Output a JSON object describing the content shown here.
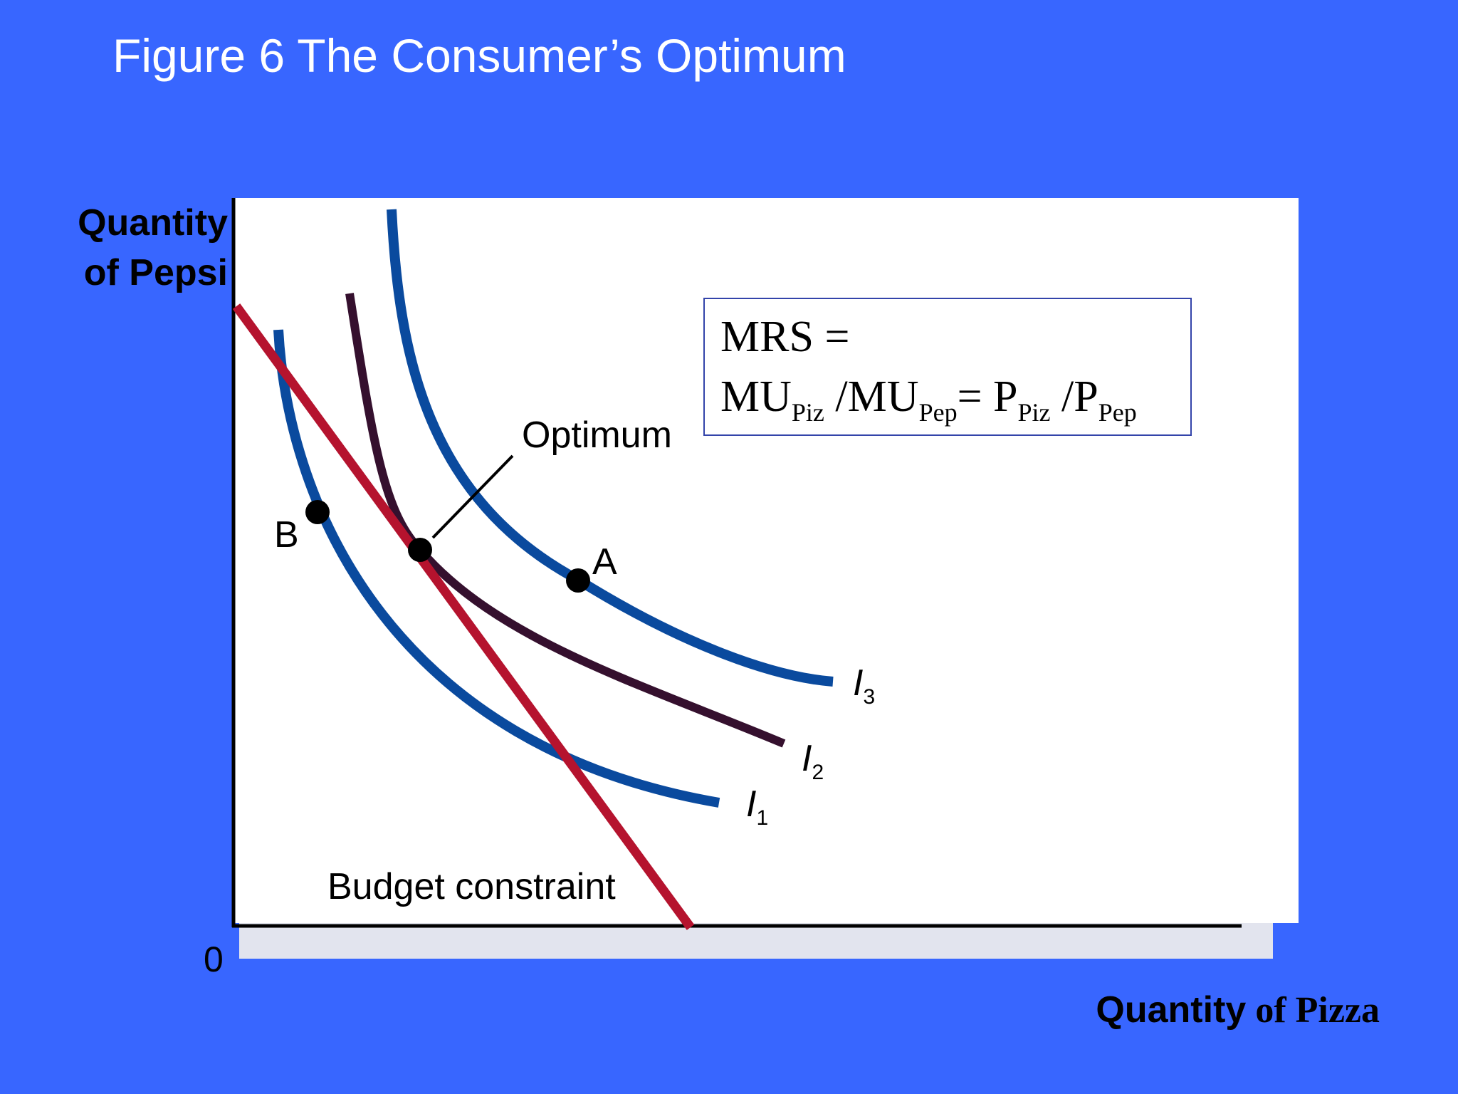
{
  "slide": {
    "title": "Figure 6 The Consumer’s Optimum"
  },
  "axes": {
    "y_label_line1": "Quantity",
    "y_label_line2": "of Pepsi",
    "x_label_bold": "Quantity",
    "x_label_serif": " of Pizza",
    "origin": "0"
  },
  "labels": {
    "optimum": "Optimum",
    "point_a": "A",
    "point_b": "B",
    "budget": "Budget constraint",
    "i1": "I",
    "i1_sub": "1",
    "i2": "I",
    "i2_sub": "2",
    "i3": "I",
    "i3_sub": "3"
  },
  "formula": {
    "line1": "MRS =",
    "mu1": "MU",
    "sub_piz": "Piz",
    "slash1": " /MU",
    "sub_pep": "Pep",
    "eq": "= P",
    "sub_piz2": "Piz",
    "slash2": " /P",
    "sub_pep2": "Pep"
  },
  "colors": {
    "background": "#3866FF",
    "plot_area": "#FFFFFF",
    "indifference_outer": "#0A4A9E",
    "indifference_mid": "#35102E",
    "budget_line": "#B5132E"
  }
}
